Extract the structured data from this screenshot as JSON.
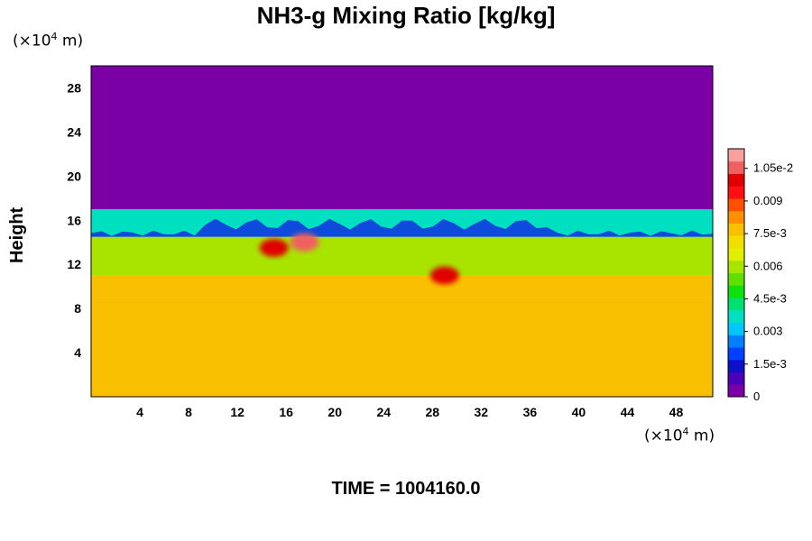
{
  "chart_data": {
    "type": "heatmap",
    "title": "NH3-g Mixing Ratio [kg/kg]",
    "ylabel": "Height",
    "x_unit_prefix": "(×10",
    "x_unit_exp": "4",
    "x_unit_suffix": " m)",
    "y_unit_prefix": "(×10",
    "y_unit_exp": "4",
    "y_unit_suffix": " m)",
    "xlim": [
      0,
      51
    ],
    "ylim": [
      0,
      30
    ],
    "x_ticks": [
      4,
      8,
      12,
      16,
      20,
      24,
      28,
      32,
      36,
      40,
      44,
      48
    ],
    "y_ticks": [
      4,
      8,
      12,
      16,
      20,
      24,
      28
    ],
    "field_bands": [
      {
        "y_from": 0,
        "y_to": 9,
        "value": 0.0079
      },
      {
        "y_from": 9,
        "y_to": 11,
        "value": 0.0076
      },
      {
        "y_from": 11,
        "y_to": 14.5,
        "value": 0.0057
      },
      {
        "y_from": 14.5,
        "y_to": 17,
        "value": 0.0035
      },
      {
        "y_from": 17,
        "y_to": 30,
        "value": 0.0
      }
    ],
    "hotspots": [
      {
        "x": 17.5,
        "y": 14.0,
        "value": 0.0105
      },
      {
        "x": 29.0,
        "y": 11.0,
        "value": 0.0102
      },
      {
        "x": 15.0,
        "y": 13.5,
        "value": 0.0098
      }
    ],
    "colorbar": {
      "min": 0,
      "max": 0.0114,
      "tick_values": [
        0,
        0.0015,
        0.003,
        0.0045,
        0.006,
        0.0075,
        0.009,
        0.0105
      ],
      "tick_labels": [
        "0",
        "1.5e-3",
        "0.003",
        "4.5e-3",
        "0.006",
        "7.5e-3",
        "0.009",
        "1.05e-2"
      ],
      "colors": [
        "#7a00a6",
        "#4a00b4",
        "#1010c8",
        "#0040ff",
        "#0080ff",
        "#00c8ff",
        "#00e0c0",
        "#00e070",
        "#10e010",
        "#60e000",
        "#a8e400",
        "#e0f000",
        "#f0e000",
        "#f8c000",
        "#ff9000",
        "#ff5000",
        "#ff1010",
        "#e00000",
        "#f06060",
        "#f8a0a0"
      ]
    },
    "grid": false
  },
  "footer": {
    "time_label": "TIME = 1004160.0"
  }
}
